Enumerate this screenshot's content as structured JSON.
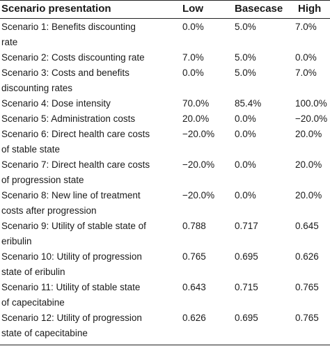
{
  "headers": [
    "Scenario presentation",
    "Low",
    "Basecase",
    "High"
  ],
  "rows": [
    {
      "lines": [
        "Scenario 1: Benefits discounting",
        "rate"
      ],
      "low": "0.0%",
      "base": "5.0%",
      "high": "7.0%"
    },
    {
      "lines": [
        "Scenario 2: Costs discounting rate"
      ],
      "low": "7.0%",
      "base": "5.0%",
      "high": "0.0%"
    },
    {
      "lines": [
        "Scenario 3: Costs and benefits",
        "discounting rates"
      ],
      "low": "0.0%",
      "base": "5.0%",
      "high": "7.0%"
    },
    {
      "lines": [
        "Scenario 4: Dose intensity"
      ],
      "low": "70.0%",
      "base": "85.4%",
      "high": "100.0%"
    },
    {
      "lines": [
        "Scenario 5: Administration costs"
      ],
      "low": "20.0%",
      "base": "0.0%",
      "high": "−20.0%"
    },
    {
      "lines": [
        "Scenario 6: Direct health care costs",
        "of stable state"
      ],
      "low": "−20.0%",
      "base": "0.0%",
      "high": "20.0%"
    },
    {
      "lines": [
        "Scenario 7: Direct health care costs",
        "of progression state"
      ],
      "low": "−20.0%",
      "base": "0.0%",
      "high": "20.0%"
    },
    {
      "lines": [
        "Scenario 8: New line of treatment",
        "costs after progression"
      ],
      "low": "−20.0%",
      "base": "0.0%",
      "high": "20.0%"
    },
    {
      "lines": [
        "Scenario 9: Utility of stable state of",
        "eribulin"
      ],
      "low": "0.788",
      "base": "0.717",
      "high": "0.645"
    },
    {
      "lines": [
        "Scenario 10: Utility of progression",
        "state of eribulin"
      ],
      "low": "0.765",
      "base": "0.695",
      "high": "0.626"
    },
    {
      "lines": [
        "Scenario 11: Utility of stable state",
        "of capecitabine"
      ],
      "low": "0.643",
      "base": "0.715",
      "high": "0.765"
    },
    {
      "lines": [
        "Scenario 12: Utility of progression",
        "state of capecitabine"
      ],
      "low": "0.626",
      "base": "0.695",
      "high": "0.765"
    }
  ]
}
